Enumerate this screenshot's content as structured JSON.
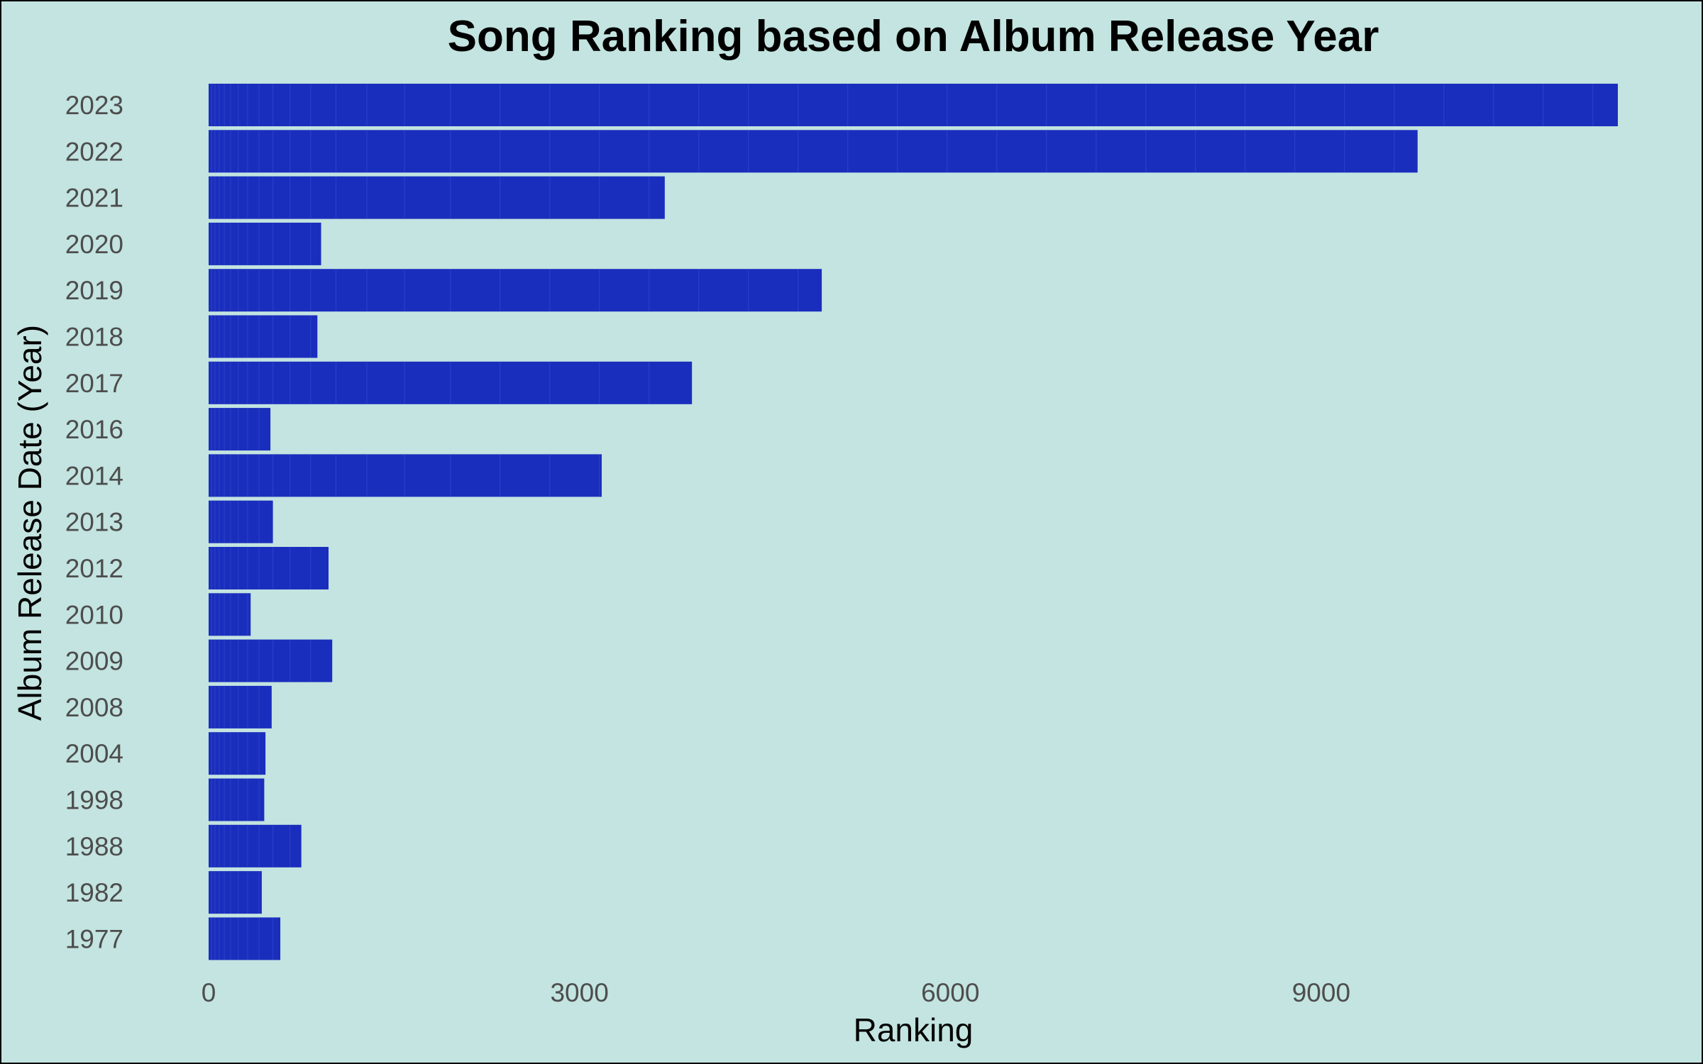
{
  "chart_data": {
    "type": "bar",
    "orientation": "horizontal",
    "title": "Song Ranking based on Album Release Year",
    "xlabel": "Ranking",
    "ylabel": "Album Release Date (Year)",
    "categories": [
      "2023",
      "2022",
      "2021",
      "2020",
      "2019",
      "2018",
      "2017",
      "2016",
      "2014",
      "2013",
      "2012",
      "2010",
      "2009",
      "2008",
      "2004",
      "1998",
      "1988",
      "1982",
      "1977"
    ],
    "values": [
      11400,
      9780,
      3690,
      910,
      4960,
      880,
      3910,
      500,
      3180,
      520,
      970,
      340,
      1000,
      510,
      460,
      450,
      750,
      430,
      580
    ],
    "xticks": [
      0,
      3000,
      6000,
      9000
    ],
    "xlim": [
      0,
      11400
    ],
    "bar_color": "#1a2ebd",
    "segment_line_color": "#3a4fd0",
    "background_color": "#c3e4e0",
    "grid": false,
    "legend": "none"
  }
}
